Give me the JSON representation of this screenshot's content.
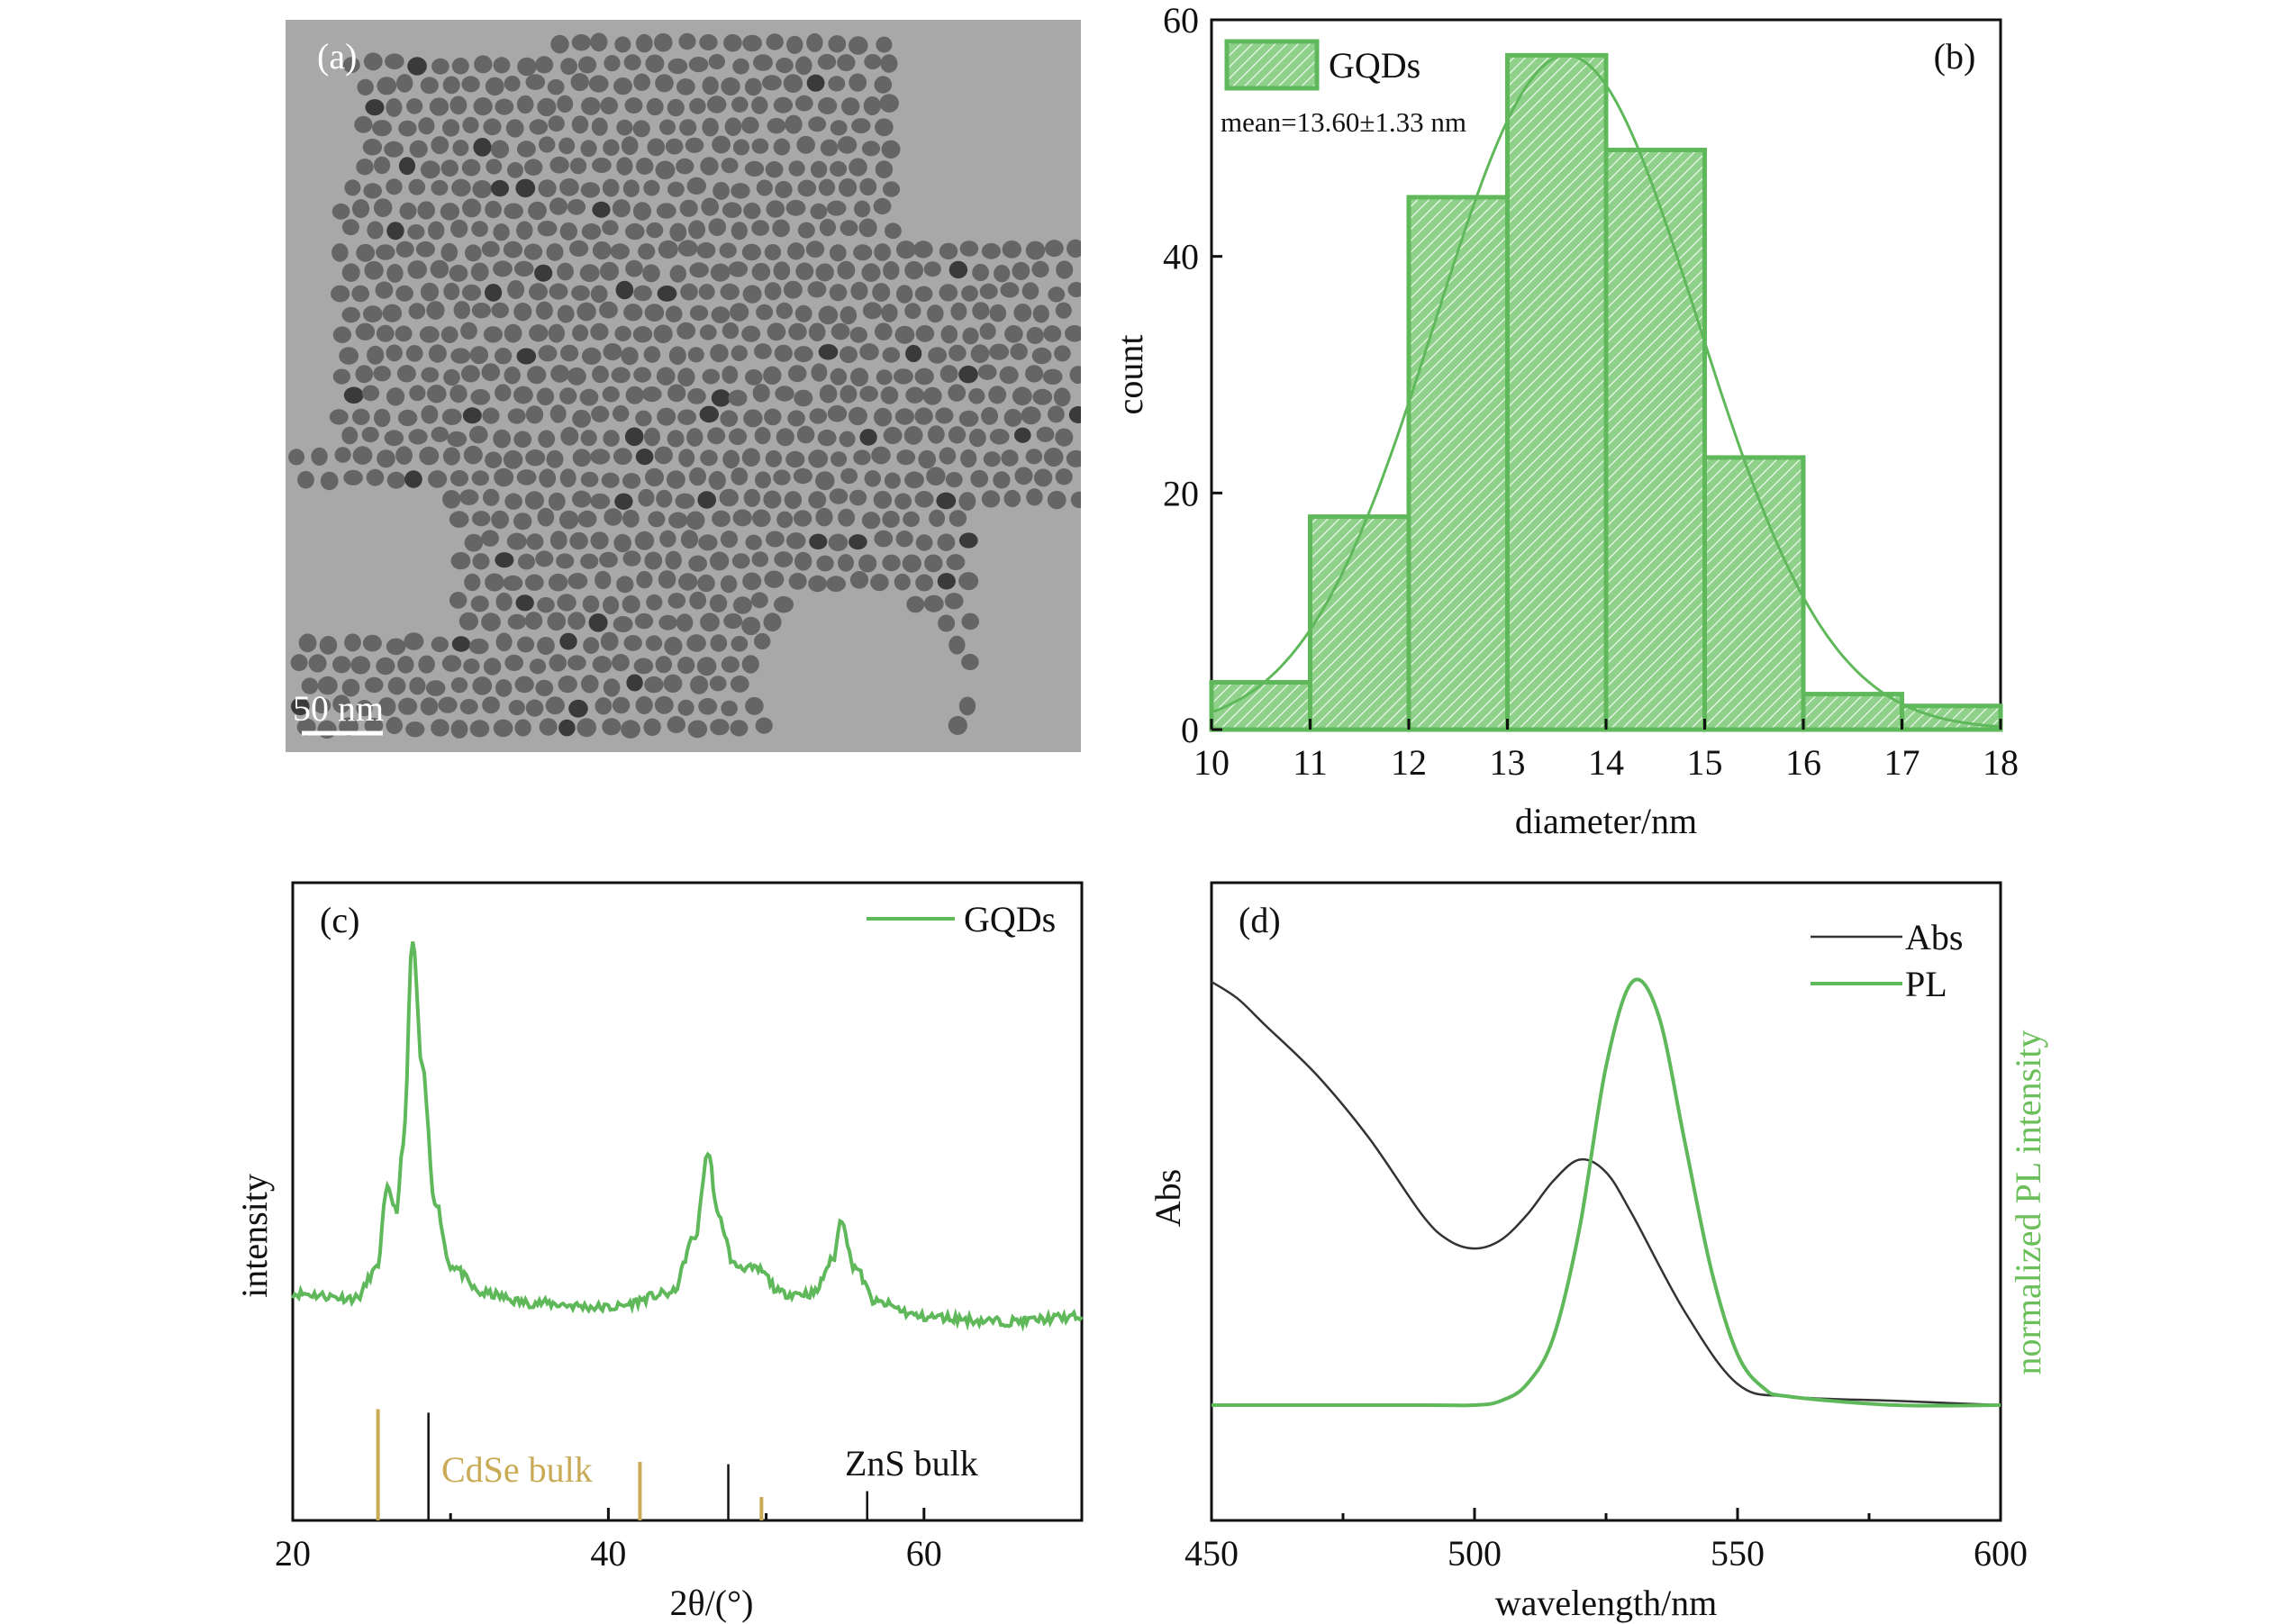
{
  "panels": {
    "a": {
      "label": "(a)",
      "scale_bar_label": "50 nm"
    },
    "b": {
      "label": "(b)",
      "legend": "GQDs",
      "annotation": "mean=13.60±1.33 nm"
    },
    "c": {
      "label": "(c)",
      "legend": "GQDs",
      "ref_labels": [
        "CdSe bulk",
        "ZnS bulk"
      ]
    },
    "d": {
      "label": "(d)",
      "legend": [
        "Abs",
        "PL"
      ]
    }
  },
  "colors": {
    "green": "#5fb85a",
    "green_fill": "#8fd08a",
    "cdse": "#c9aa55",
    "abs": "#333333",
    "tem_bg": "#9c9c9c"
  },
  "chart_data": [
    {
      "panel": "b",
      "type": "bar",
      "bins": [
        [
          10,
          11
        ],
        [
          11,
          12
        ],
        [
          12,
          13
        ],
        [
          13,
          14
        ],
        [
          14,
          15
        ],
        [
          15,
          16
        ],
        [
          16,
          17
        ],
        [
          17,
          18
        ]
      ],
      "values": [
        4,
        18,
        45,
        57,
        49,
        23,
        3,
        2
      ],
      "series": [
        {
          "name": "GQDs",
          "values": [
            4,
            18,
            45,
            57,
            49,
            23,
            3,
            2
          ]
        }
      ],
      "fit": {
        "mean": 13.6,
        "sd": 1.33
      },
      "xlabel": "diameter/nm",
      "ylabel": "count",
      "xlim": [
        10,
        18
      ],
      "ylim": [
        0,
        60
      ],
      "xticks": [
        10,
        11,
        12,
        13,
        14,
        15,
        16,
        17,
        18
      ],
      "yticks": [
        0,
        20,
        40,
        60
      ],
      "legend_position": "top-left"
    },
    {
      "panel": "c",
      "type": "line",
      "xlabel": "2θ/(°)",
      "ylabel": "intensity",
      "xlim": [
        20,
        70
      ],
      "xticks": [
        20,
        40,
        60
      ],
      "series": [
        {
          "name": "GQDs",
          "x": [
            20,
            24,
            25.3,
            26,
            26.6,
            27,
            27.6,
            28.2,
            29,
            30,
            32,
            35,
            40,
            44,
            45.5,
            46.3,
            47,
            48,
            49.5,
            51,
            53,
            54.2,
            54.8,
            55.5,
            57,
            60,
            65,
            70
          ],
          "y": [
            0.2,
            0.19,
            0.25,
            0.42,
            0.38,
            0.52,
            0.95,
            0.68,
            0.4,
            0.26,
            0.2,
            0.18,
            0.17,
            0.2,
            0.32,
            0.5,
            0.36,
            0.26,
            0.25,
            0.2,
            0.2,
            0.27,
            0.36,
            0.26,
            0.18,
            0.15,
            0.14,
            0.15
          ]
        }
      ],
      "reference_peaks": [
        {
          "name": "CdSe bulk",
          "x": [
            25.4,
            42.0,
            49.7
          ],
          "h": [
            0.95,
            0.5,
            0.2
          ]
        },
        {
          "name": "ZnS bulk",
          "x": [
            28.6,
            47.6,
            56.4
          ],
          "h": [
            0.92,
            0.48,
            0.25
          ]
        }
      ],
      "legend_position": "top-right"
    },
    {
      "panel": "d",
      "type": "line",
      "xlabel": "wavelength/nm",
      "ylabel": "Abs",
      "y2label": "normalized PL intensity",
      "xlim": [
        450,
        600
      ],
      "xticks": [
        450,
        500,
        550,
        600
      ],
      "series": [
        {
          "name": "Abs",
          "x": [
            450,
            455,
            460,
            470,
            480,
            490,
            495,
            500,
            505,
            510,
            515,
            520,
            525,
            530,
            540,
            550,
            560,
            580,
            600
          ],
          "y": [
            1.0,
            0.96,
            0.9,
            0.78,
            0.63,
            0.45,
            0.39,
            0.37,
            0.39,
            0.45,
            0.53,
            0.58,
            0.55,
            0.45,
            0.22,
            0.05,
            0.02,
            0.01,
            0.0
          ]
        },
        {
          "name": "PL",
          "x": [
            450,
            490,
            500,
            505,
            510,
            515,
            520,
            525,
            530,
            535,
            540,
            545,
            550,
            555,
            560,
            580,
            600
          ],
          "y": [
            0.0,
            0.0,
            0.0,
            0.01,
            0.05,
            0.16,
            0.42,
            0.8,
            1.0,
            0.92,
            0.62,
            0.32,
            0.12,
            0.04,
            0.02,
            0.0,
            0.0
          ]
        }
      ],
      "legend_position": "top-right"
    }
  ]
}
